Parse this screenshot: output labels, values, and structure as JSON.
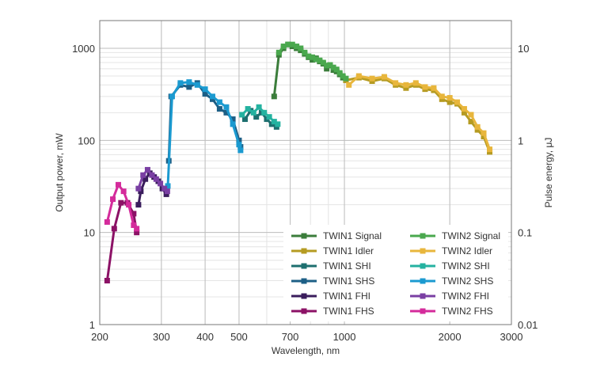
{
  "chart_data": {
    "type": "line",
    "title": "",
    "xlabel": "Wavelength, nm",
    "ylabel": "Output power, mW",
    "y2label": "Pulse energy, μJ",
    "xscale": "log",
    "yscale": "log",
    "xlim": [
      200,
      3000
    ],
    "ylim": [
      1,
      2000
    ],
    "y2lim": [
      0.01,
      20
    ],
    "grid": true,
    "legend_position": "lower-right",
    "x_ticks": [
      200,
      300,
      400,
      500,
      700,
      1000,
      2000,
      3000
    ],
    "x_tick_labels": [
      "200",
      "300",
      "400",
      "500",
      "700",
      "1000",
      "2000",
      "3000"
    ],
    "y_ticks": [
      1,
      10,
      100,
      1000
    ],
    "y_tick_labels": [
      "1",
      "10",
      "100",
      "1000"
    ],
    "y2_ticks": [
      0.01,
      0.1,
      1,
      10
    ],
    "y2_tick_labels": [
      "0.01",
      "0.1",
      "1",
      "10"
    ],
    "series": [
      {
        "name": "TWIN1 Signal",
        "color": "#3b7d3b",
        "x": [
          630,
          650,
          670,
          690,
          710,
          730,
          750,
          770,
          790,
          810,
          830,
          850,
          870,
          890,
          910,
          930,
          950,
          970,
          990,
          1010
        ],
        "y": [
          300,
          850,
          1000,
          1100,
          1050,
          1000,
          950,
          870,
          800,
          750,
          780,
          720,
          680,
          600,
          650,
          580,
          560,
          520,
          480,
          450
        ]
      },
      {
        "name": "TWIN1 Idler",
        "color": "#b59b22",
        "x": [
          1010,
          1100,
          1200,
          1300,
          1400,
          1500,
          1600,
          1700,
          1800,
          1900,
          2000,
          2100,
          2200,
          2300,
          2400,
          2500,
          2600
        ],
        "y": [
          450,
          480,
          440,
          470,
          400,
          370,
          400,
          360,
          350,
          280,
          260,
          250,
          200,
          160,
          130,
          110,
          75
        ]
      },
      {
        "name": "TWIN1 SHI",
        "color": "#1d6f6f",
        "x": [
          520,
          540,
          560,
          580,
          600,
          620,
          640
        ],
        "y": [
          170,
          210,
          180,
          200,
          170,
          150,
          140
        ]
      },
      {
        "name": "TWIN1 SHS",
        "color": "#1d5f86",
        "x": [
          315,
          320,
          340,
          360,
          380,
          400,
          420,
          440,
          460,
          480,
          500,
          505
        ],
        "y": [
          60,
          300,
          400,
          380,
          420,
          320,
          280,
          220,
          200,
          170,
          100,
          85
        ]
      },
      {
        "name": "TWIN1 FHI",
        "color": "#3a1d5c",
        "x": [
          258,
          262,
          270,
          278,
          286,
          294,
          302,
          310
        ],
        "y": [
          20,
          28,
          38,
          44,
          40,
          36,
          30,
          26
        ]
      },
      {
        "name": "TWIN1 FHS",
        "color": "#8c1266",
        "x": [
          210,
          220,
          230,
          240,
          250,
          255
        ],
        "y": [
          3,
          11,
          21,
          21,
          16,
          10
        ]
      },
      {
        "name": "TWIN2 Signal",
        "color": "#4aa84e",
        "x": [
          650,
          670,
          690,
          710,
          730,
          750,
          770,
          790,
          810,
          830,
          850,
          870,
          890,
          910,
          930,
          950,
          970,
          990,
          1010
        ],
        "y": [
          900,
          1050,
          1100,
          1100,
          1050,
          1000,
          900,
          820,
          800,
          760,
          740,
          700,
          650,
          660,
          620,
          590,
          540,
          500,
          470
        ]
      },
      {
        "name": "TWIN2 Idler",
        "color": "#e8b63c",
        "x": [
          1030,
          1100,
          1200,
          1300,
          1400,
          1500,
          1600,
          1700,
          1800,
          1900,
          2000,
          2100,
          2200,
          2300,
          2400,
          2500,
          2600
        ],
        "y": [
          400,
          500,
          470,
          490,
          420,
          400,
          420,
          380,
          370,
          300,
          290,
          260,
          220,
          190,
          140,
          120,
          80
        ]
      },
      {
        "name": "TWIN2 SHI",
        "color": "#24b2a0",
        "x": [
          510,
          530,
          550,
          570,
          590,
          610,
          630,
          645
        ],
        "y": [
          190,
          220,
          200,
          230,
          200,
          180,
          160,
          150
        ]
      },
      {
        "name": "TWIN2 SHS",
        "color": "#1b9ad0",
        "x": [
          313,
          322,
          340,
          360,
          380,
          400,
          420,
          440,
          460,
          480,
          500,
          505
        ],
        "y": [
          32,
          300,
          420,
          430,
          400,
          360,
          300,
          260,
          230,
          150,
          90,
          78
        ]
      },
      {
        "name": "TWIN2 FHI",
        "color": "#7a3fa3",
        "x": [
          258,
          266,
          274,
          282,
          290,
          298,
          306,
          312
        ],
        "y": [
          30,
          42,
          48,
          42,
          38,
          34,
          30,
          28
        ]
      },
      {
        "name": "TWIN2 FHS",
        "color": "#d42b9b",
        "x": [
          210,
          218,
          226,
          234,
          242,
          250,
          255
        ],
        "y": [
          13,
          23,
          33,
          28,
          20,
          12,
          11
        ]
      }
    ]
  }
}
